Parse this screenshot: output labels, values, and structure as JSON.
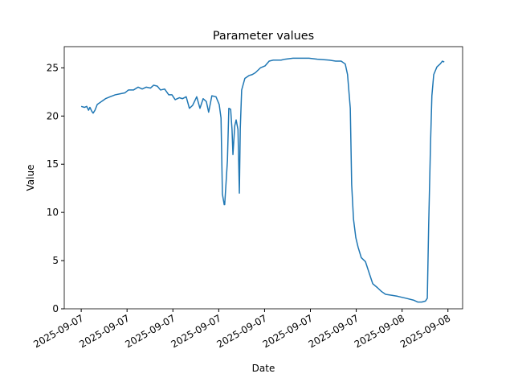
{
  "chart_data": {
    "type": "line",
    "title": "Parameter values",
    "xlabel": "Date",
    "ylabel": "Value",
    "x": [
      0,
      0.07,
      0.12,
      0.16,
      0.19,
      0.23,
      0.26,
      0.3,
      0.35,
      0.44,
      0.53,
      0.63,
      0.74,
      0.84,
      0.95,
      1.03,
      1.14,
      1.24,
      1.33,
      1.42,
      1.51,
      1.58,
      1.66,
      1.73,
      1.82,
      1.91,
      1.98,
      2.05,
      2.14,
      2.21,
      2.29,
      2.36,
      2.43,
      2.52,
      2.59,
      2.66,
      2.73,
      2.78,
      2.85,
      2.94,
      3.01,
      3.05,
      3.08,
      3.12,
      3.13,
      3.19,
      3.22,
      3.26,
      3.29,
      3.31,
      3.35,
      3.38,
      3.42,
      3.45,
      3.47,
      3.5,
      3.57,
      3.66,
      3.73,
      3.8,
      3.91,
      4.01,
      4.1,
      4.19,
      4.36,
      4.45,
      4.62,
      4.8,
      4.97,
      5.15,
      5.41,
      5.55,
      5.67,
      5.76,
      5.81,
      5.87,
      5.9,
      5.94,
      5.99,
      6.04,
      6.11,
      6.2,
      6.29,
      6.36,
      6.46,
      6.55,
      6.64,
      6.78,
      6.9,
      7.08,
      7.25,
      7.34,
      7.43,
      7.51,
      7.55,
      7.58,
      7.62,
      7.65,
      7.69,
      7.76,
      7.83,
      7.88,
      7.92
    ],
    "series": [
      {
        "color": "#1f77b4",
        "values": [
          21.0,
          20.9,
          21.0,
          20.6,
          20.9,
          20.5,
          20.3,
          20.6,
          21.2,
          21.5,
          21.8,
          22.0,
          22.2,
          22.3,
          22.4,
          22.7,
          22.7,
          23.0,
          22.8,
          23.0,
          22.9,
          23.2,
          23.1,
          22.7,
          22.8,
          22.2,
          22.2,
          21.7,
          21.9,
          21.8,
          22.0,
          20.8,
          21.1,
          22.0,
          20.8,
          21.8,
          21.5,
          20.4,
          22.1,
          22.0,
          21.2,
          19.8,
          11.9,
          10.8,
          10.8,
          15.4,
          20.8,
          20.7,
          18.6,
          16.0,
          19.0,
          19.6,
          18.6,
          12.0,
          18.7,
          22.7,
          23.9,
          24.2,
          24.3,
          24.5,
          25.0,
          25.2,
          25.7,
          25.8,
          25.8,
          25.9,
          26.0,
          26.0,
          26.0,
          25.9,
          25.8,
          25.7,
          25.7,
          25.4,
          24.3,
          20.8,
          12.9,
          9.3,
          7.4,
          6.4,
          5.3,
          4.9,
          3.6,
          2.6,
          2.2,
          1.8,
          1.5,
          1.4,
          1.3,
          1.1,
          0.9,
          0.7,
          0.7,
          0.8,
          1.1,
          8.7,
          17.1,
          22.1,
          24.3,
          25.1,
          25.4,
          25.7,
          25.6
        ]
      }
    ],
    "xlim": [
      -0.37,
      8.32
    ],
    "ylim": [
      0,
      27.2
    ],
    "xticks": [
      {
        "value": 0,
        "label": "2025-09-07"
      },
      {
        "value": 1,
        "label": "2025-09-07"
      },
      {
        "value": 2,
        "label": "2025-09-07"
      },
      {
        "value": 3,
        "label": "2025-09-07"
      },
      {
        "value": 4,
        "label": "2025-09-07"
      },
      {
        "value": 5,
        "label": "2025-09-07"
      },
      {
        "value": 6,
        "label": "2025-09-07"
      },
      {
        "value": 7,
        "label": "2025-09-08"
      },
      {
        "value": 8,
        "label": "2025-09-08"
      }
    ],
    "yticks": [
      0,
      5,
      10,
      15,
      20,
      25
    ]
  }
}
